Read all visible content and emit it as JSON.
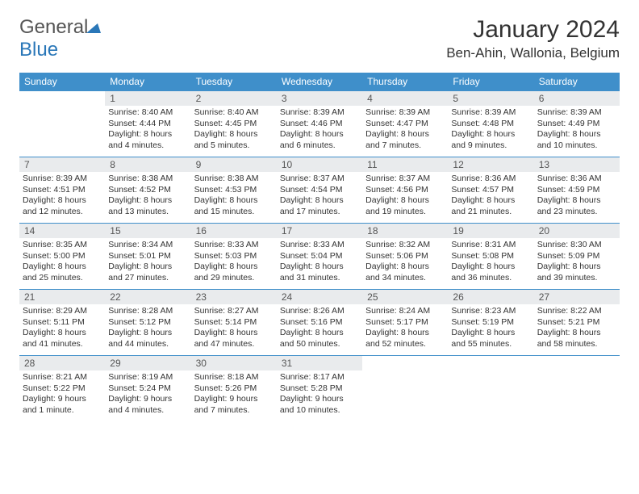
{
  "brand": {
    "part1": "General",
    "part2": "Blue"
  },
  "title": "January 2024",
  "location": "Ben-Ahin, Wallonia, Belgium",
  "colors": {
    "header_bg": "#3f8fca",
    "header_text": "#ffffff",
    "daynum_bg": "#e9ebed",
    "daynum_text": "#555555",
    "border": "#3f8fca",
    "background": "#ffffff",
    "text": "#333333"
  },
  "weekday_labels": [
    "Sunday",
    "Monday",
    "Tuesday",
    "Wednesday",
    "Thursday",
    "Friday",
    "Saturday"
  ],
  "weeks": [
    [
      {
        "blank": true
      },
      {
        "day": "1",
        "sunrise": "Sunrise: 8:40 AM",
        "sunset": "Sunset: 4:44 PM",
        "daylight": "Daylight: 8 hours and 4 minutes."
      },
      {
        "day": "2",
        "sunrise": "Sunrise: 8:40 AM",
        "sunset": "Sunset: 4:45 PM",
        "daylight": "Daylight: 8 hours and 5 minutes."
      },
      {
        "day": "3",
        "sunrise": "Sunrise: 8:39 AM",
        "sunset": "Sunset: 4:46 PM",
        "daylight": "Daylight: 8 hours and 6 minutes."
      },
      {
        "day": "4",
        "sunrise": "Sunrise: 8:39 AM",
        "sunset": "Sunset: 4:47 PM",
        "daylight": "Daylight: 8 hours and 7 minutes."
      },
      {
        "day": "5",
        "sunrise": "Sunrise: 8:39 AM",
        "sunset": "Sunset: 4:48 PM",
        "daylight": "Daylight: 8 hours and 9 minutes."
      },
      {
        "day": "6",
        "sunrise": "Sunrise: 8:39 AM",
        "sunset": "Sunset: 4:49 PM",
        "daylight": "Daylight: 8 hours and 10 minutes."
      }
    ],
    [
      {
        "day": "7",
        "sunrise": "Sunrise: 8:39 AM",
        "sunset": "Sunset: 4:51 PM",
        "daylight": "Daylight: 8 hours and 12 minutes."
      },
      {
        "day": "8",
        "sunrise": "Sunrise: 8:38 AM",
        "sunset": "Sunset: 4:52 PM",
        "daylight": "Daylight: 8 hours and 13 minutes."
      },
      {
        "day": "9",
        "sunrise": "Sunrise: 8:38 AM",
        "sunset": "Sunset: 4:53 PM",
        "daylight": "Daylight: 8 hours and 15 minutes."
      },
      {
        "day": "10",
        "sunrise": "Sunrise: 8:37 AM",
        "sunset": "Sunset: 4:54 PM",
        "daylight": "Daylight: 8 hours and 17 minutes."
      },
      {
        "day": "11",
        "sunrise": "Sunrise: 8:37 AM",
        "sunset": "Sunset: 4:56 PM",
        "daylight": "Daylight: 8 hours and 19 minutes."
      },
      {
        "day": "12",
        "sunrise": "Sunrise: 8:36 AM",
        "sunset": "Sunset: 4:57 PM",
        "daylight": "Daylight: 8 hours and 21 minutes."
      },
      {
        "day": "13",
        "sunrise": "Sunrise: 8:36 AM",
        "sunset": "Sunset: 4:59 PM",
        "daylight": "Daylight: 8 hours and 23 minutes."
      }
    ],
    [
      {
        "day": "14",
        "sunrise": "Sunrise: 8:35 AM",
        "sunset": "Sunset: 5:00 PM",
        "daylight": "Daylight: 8 hours and 25 minutes."
      },
      {
        "day": "15",
        "sunrise": "Sunrise: 8:34 AM",
        "sunset": "Sunset: 5:01 PM",
        "daylight": "Daylight: 8 hours and 27 minutes."
      },
      {
        "day": "16",
        "sunrise": "Sunrise: 8:33 AM",
        "sunset": "Sunset: 5:03 PM",
        "daylight": "Daylight: 8 hours and 29 minutes."
      },
      {
        "day": "17",
        "sunrise": "Sunrise: 8:33 AM",
        "sunset": "Sunset: 5:04 PM",
        "daylight": "Daylight: 8 hours and 31 minutes."
      },
      {
        "day": "18",
        "sunrise": "Sunrise: 8:32 AM",
        "sunset": "Sunset: 5:06 PM",
        "daylight": "Daylight: 8 hours and 34 minutes."
      },
      {
        "day": "19",
        "sunrise": "Sunrise: 8:31 AM",
        "sunset": "Sunset: 5:08 PM",
        "daylight": "Daylight: 8 hours and 36 minutes."
      },
      {
        "day": "20",
        "sunrise": "Sunrise: 8:30 AM",
        "sunset": "Sunset: 5:09 PM",
        "daylight": "Daylight: 8 hours and 39 minutes."
      }
    ],
    [
      {
        "day": "21",
        "sunrise": "Sunrise: 8:29 AM",
        "sunset": "Sunset: 5:11 PM",
        "daylight": "Daylight: 8 hours and 41 minutes."
      },
      {
        "day": "22",
        "sunrise": "Sunrise: 8:28 AM",
        "sunset": "Sunset: 5:12 PM",
        "daylight": "Daylight: 8 hours and 44 minutes."
      },
      {
        "day": "23",
        "sunrise": "Sunrise: 8:27 AM",
        "sunset": "Sunset: 5:14 PM",
        "daylight": "Daylight: 8 hours and 47 minutes."
      },
      {
        "day": "24",
        "sunrise": "Sunrise: 8:26 AM",
        "sunset": "Sunset: 5:16 PM",
        "daylight": "Daylight: 8 hours and 50 minutes."
      },
      {
        "day": "25",
        "sunrise": "Sunrise: 8:24 AM",
        "sunset": "Sunset: 5:17 PM",
        "daylight": "Daylight: 8 hours and 52 minutes."
      },
      {
        "day": "26",
        "sunrise": "Sunrise: 8:23 AM",
        "sunset": "Sunset: 5:19 PM",
        "daylight": "Daylight: 8 hours and 55 minutes."
      },
      {
        "day": "27",
        "sunrise": "Sunrise: 8:22 AM",
        "sunset": "Sunset: 5:21 PM",
        "daylight": "Daylight: 8 hours and 58 minutes."
      }
    ],
    [
      {
        "day": "28",
        "sunrise": "Sunrise: 8:21 AM",
        "sunset": "Sunset: 5:22 PM",
        "daylight": "Daylight: 9 hours and 1 minute."
      },
      {
        "day": "29",
        "sunrise": "Sunrise: 8:19 AM",
        "sunset": "Sunset: 5:24 PM",
        "daylight": "Daylight: 9 hours and 4 minutes."
      },
      {
        "day": "30",
        "sunrise": "Sunrise: 8:18 AM",
        "sunset": "Sunset: 5:26 PM",
        "daylight": "Daylight: 9 hours and 7 minutes."
      },
      {
        "day": "31",
        "sunrise": "Sunrise: 8:17 AM",
        "sunset": "Sunset: 5:28 PM",
        "daylight": "Daylight: 9 hours and 10 minutes."
      },
      {
        "blank": true
      },
      {
        "blank": true
      },
      {
        "blank": true
      }
    ]
  ]
}
